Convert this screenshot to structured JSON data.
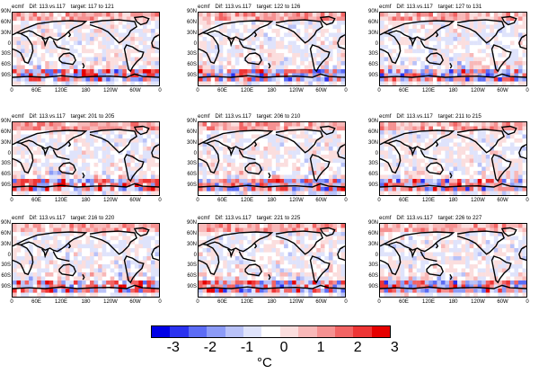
{
  "panels": [
    {
      "model": "ecmf",
      "dif": "Dif: 113.vs.117",
      "target": "target: 117 to 121"
    },
    {
      "model": "ecmf",
      "dif": "Dif: 113.vs.117",
      "target": "target: 122 to 126"
    },
    {
      "model": "ecmf",
      "dif": "Dif: 113.vs.117",
      "target": "target: 127 to 131"
    },
    {
      "model": "ecmf",
      "dif": "Dif: 113.vs.117",
      "target": "target: 201 to 205"
    },
    {
      "model": "ecmf",
      "dif": "Dif: 113.vs.117",
      "target": "target: 206 to 210"
    },
    {
      "model": "ecmf",
      "dif": "Dif: 113.vs.117",
      "target": "target: 211 to 215"
    },
    {
      "model": "ecmf",
      "dif": "Dif: 113.vs.117",
      "target": "target: 216 to 220"
    },
    {
      "model": "ecmf",
      "dif": "Dif: 113.vs.117",
      "target": "target: 221 to 225"
    },
    {
      "model": "ecmf",
      "dif": "Dif: 113.vs.117",
      "target": "target: 226 to 227"
    }
  ],
  "lat_ticks": [
    "90N",
    "60N",
    "30N",
    "0",
    "30S",
    "60S",
    "90S"
  ],
  "lon_ticks": [
    "0",
    "60E",
    "120E",
    "180",
    "120W",
    "60W",
    "0"
  ],
  "colorbar": {
    "labels": [
      "-3",
      "-2",
      "-1",
      "0",
      "1",
      "2",
      "3"
    ],
    "unit": "°C",
    "colors": [
      "#0000e6",
      "#2b33f0",
      "#5c6cf5",
      "#8c9bf7",
      "#b9c2f8",
      "#dfe3fb",
      "#ffffff",
      "#fbdede",
      "#f8b8b8",
      "#f59191",
      "#f26464",
      "#ee3535",
      "#e60000"
    ]
  }
}
